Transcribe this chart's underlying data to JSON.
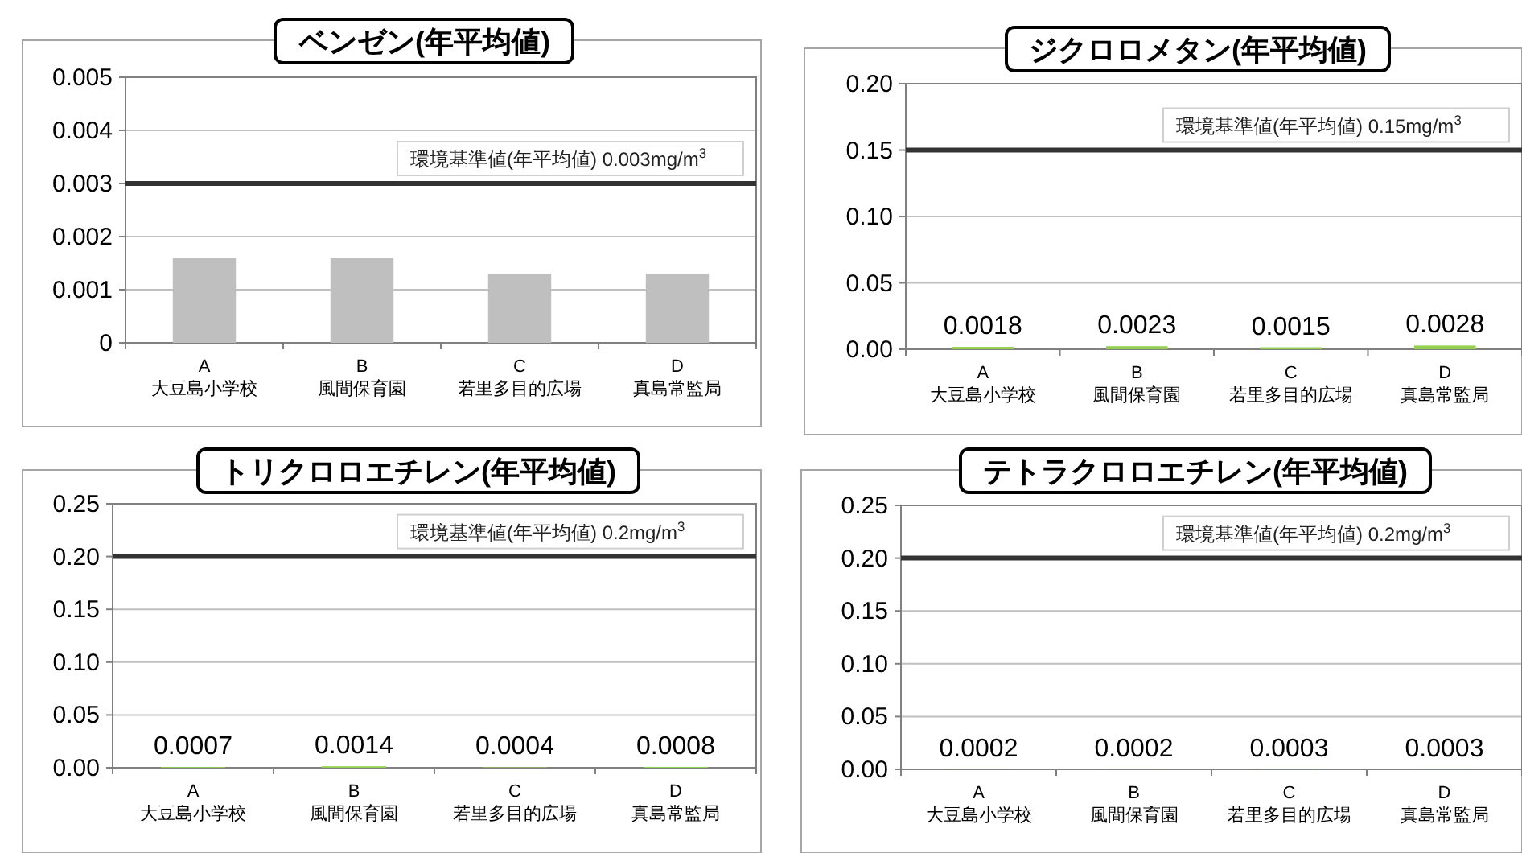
{
  "chart_data": [
    {
      "type": "bar",
      "title": "ベンゼン(年平均値)",
      "categories": [
        "A\n大豆島小学校",
        "B\n風間保育園",
        "C\n若里多目的広場",
        "D\n真島常監局"
      ],
      "values": [
        0.0016,
        0.0016,
        0.0013,
        0.0013
      ],
      "color": "#bfbfbf",
      "ylim": [
        0,
        0.005
      ],
      "yticks": [
        0,
        0.001,
        0.002,
        0.003,
        0.004,
        0.005
      ],
      "grid": "y",
      "ref_lines": [
        {
          "axis": "y",
          "value": 0.003,
          "label": "環境基準値(年平均値)  0.003mg/m$^{3}$",
          "color": "#333333"
        }
      ]
    },
    {
      "type": "bar",
      "title": "ジクロロメタン(年平均値)",
      "categories": [
        "A\n大豆島小学校",
        "B\n風間保育園",
        "C\n若里多目的広場",
        "D\n真島常監局"
      ],
      "values": [
        0.0018,
        0.0023,
        0.0015,
        0.0028
      ],
      "color": "#92d050",
      "data_labels": true,
      "ylim": [
        0,
        0.2
      ],
      "yticks": [
        {
          "value": 0,
          "label": "0.00"
        },
        {
          "value": 0.05,
          "label": "0.05"
        },
        {
          "value": 0.1,
          "label": "0.10"
        },
        {
          "value": 0.15,
          "label": "0.15"
        },
        {
          "value": 0.2,
          "label": "0.20"
        }
      ],
      "grid": "y",
      "ref_lines": [
        {
          "axis": "y",
          "value": 0.15,
          "label": "環境基準値(年平均値)  0.15mg/m$^{3}$",
          "color": "#333333"
        }
      ]
    },
    {
      "type": "bar",
      "title": "トリクロロエチレン(年平均値)",
      "categories": [
        "A\n大豆島小学校",
        "B\n風間保育園",
        "C\n若里多目的広場",
        "D\n真島常監局"
      ],
      "values": [
        0.0007,
        0.0014,
        0.0004,
        0.0008
      ],
      "color": "#92d050",
      "data_labels": true,
      "ylim": [
        0,
        0.25
      ],
      "yticks": [
        {
          "value": 0,
          "label": "0.00"
        },
        {
          "value": 0.05,
          "label": "0.05"
        },
        {
          "value": 0.1,
          "label": "0.10"
        },
        {
          "value": 0.15,
          "label": "0.15"
        },
        {
          "value": 0.2,
          "label": "0.20"
        },
        {
          "value": 0.25,
          "label": "0.25"
        }
      ],
      "grid": "y",
      "ref_lines": [
        {
          "axis": "y",
          "value": 0.2,
          "label": "環境基準値(年平均値)  0.2mg/m$^{3}$",
          "color": "#333333"
        }
      ]
    },
    {
      "type": "bar",
      "title": "テトラクロロエチレン(年平均値)",
      "categories": [
        "A\n大豆島小学校",
        "B\n風間保育園",
        "C\n若里多目的広場",
        "D\n真島常監局"
      ],
      "values": [
        0.0002,
        0.0002,
        0.0003,
        0.0003
      ],
      "color": "#92d050",
      "data_labels": true,
      "ylim": [
        0,
        0.25
      ],
      "yticks": [
        {
          "value": 0,
          "label": "0.00"
        },
        {
          "value": 0.05,
          "label": "0.05"
        },
        {
          "value": 0.1,
          "label": "0.10"
        },
        {
          "value": 0.15,
          "label": "0.15"
        },
        {
          "value": 0.2,
          "label": "0.20"
        },
        {
          "value": 0.25,
          "label": "0.25"
        }
      ],
      "grid": "y",
      "ref_lines": [
        {
          "axis": "y",
          "value": 0.2,
          "label": "環境基準値(年平均値)  0.2mg/m$^{3}$",
          "color": "#333333"
        }
      ]
    }
  ]
}
